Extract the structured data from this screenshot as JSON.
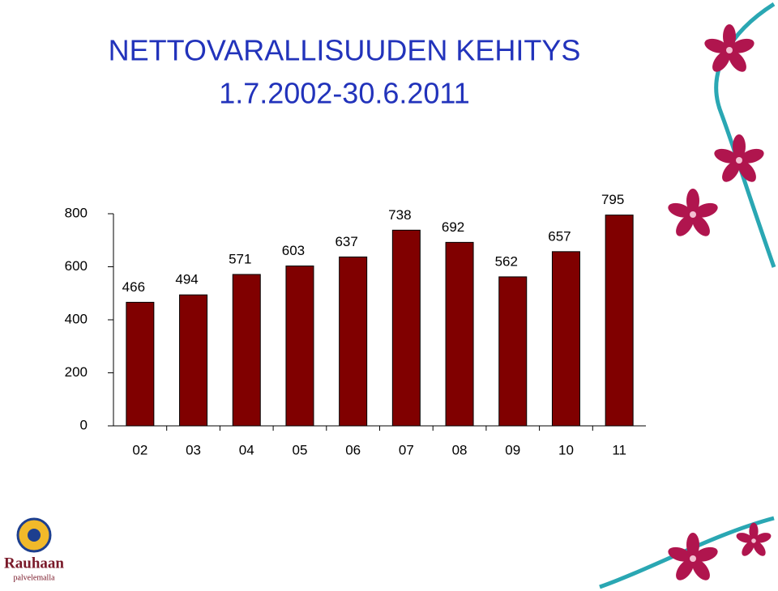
{
  "chart_data": {
    "type": "bar",
    "title": "NETTOVARALLISUUDEN KEHITYS",
    "subtitle": "1.7.2002-30.6.2011",
    "categories": [
      "02",
      "03",
      "04",
      "05",
      "06",
      "07",
      "08",
      "09",
      "10",
      "11"
    ],
    "values": [
      466,
      494,
      571,
      603,
      637,
      738,
      692,
      562,
      657,
      795
    ],
    "color": "#800000",
    "ylim": [
      0,
      800
    ],
    "yticks": [
      0,
      200,
      400,
      600,
      800
    ],
    "grid": false
  },
  "logo": {
    "name": "Rauhaan",
    "tagline": "palvelemalla"
  }
}
